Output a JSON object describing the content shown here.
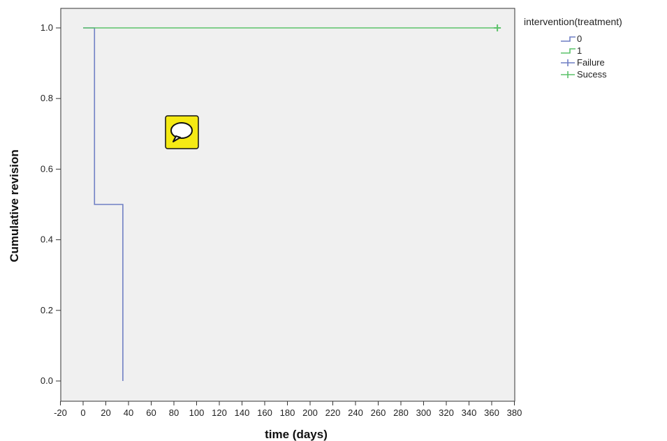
{
  "chart_data": {
    "type": "line",
    "title": "",
    "xlabel": "time (days)",
    "ylabel": "Cumulative revision",
    "xlim": [
      -20,
      380
    ],
    "ylim": [
      0,
      1.0
    ],
    "x_ticks": [
      "-20",
      "0",
      "20",
      "40",
      "60",
      "80",
      "100",
      "120",
      "140",
      "160",
      "180",
      "200",
      "220",
      "240",
      "260",
      "280",
      "300",
      "320",
      "340",
      "360",
      "380"
    ],
    "y_ticks": [
      "0.0",
      "0.2",
      "0.4",
      "0.6",
      "0.8",
      "1.0"
    ],
    "grid": false,
    "legend_position": "right",
    "legend_title": "intervention(treatment)",
    "series": [
      {
        "name": "0",
        "color": "#6f7fc4",
        "step": true,
        "x": [
          0,
          10,
          10,
          35,
          35
        ],
        "y": [
          1.0,
          1.0,
          0.5,
          0.5,
          0.0
        ]
      },
      {
        "name": "1",
        "color": "#5cc26a",
        "step": true,
        "x": [
          0,
          365
        ],
        "y": [
          1.0,
          1.0
        ]
      }
    ],
    "censored": [
      {
        "name": "Failure",
        "color": "#6f7fc4",
        "x": [],
        "y": []
      },
      {
        "name": "Sucess",
        "color": "#5cc26a",
        "x": [
          365
        ],
        "y": [
          1.0
        ]
      }
    ],
    "legend": [
      {
        "label": "0",
        "kind": "step",
        "color": "#6f7fc4"
      },
      {
        "label": "1",
        "kind": "step",
        "color": "#5cc26a"
      },
      {
        "label": "Failure",
        "kind": "cross",
        "color": "#6f7fc4"
      },
      {
        "label": "Sucess",
        "kind": "cross",
        "color": "#5cc26a"
      }
    ]
  },
  "overlay": {
    "icon": "speech-bubble-icon",
    "color": "#f5ea14"
  }
}
